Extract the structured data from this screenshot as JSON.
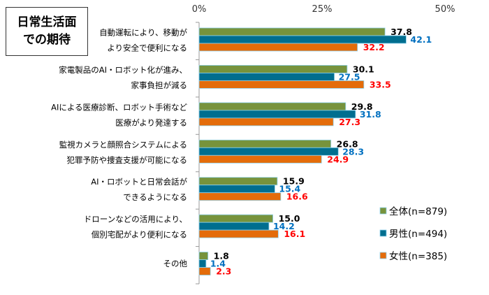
{
  "chart_data": {
    "type": "bar",
    "orientation": "horizontal",
    "title_lines": [
      "日常生活面",
      "での期待"
    ],
    "categories": [
      [
        "自動運転により、移動が",
        "より安全で便利になる"
      ],
      [
        "家電製品のAI・ロボット化が進み、",
        "家事負担が減る"
      ],
      [
        "AIによる医療診断、ロボット手術など",
        "医療がより発達する"
      ],
      [
        "監視カメラと顔照合システムによる",
        "犯罪予防や捜査支援が可能になる"
      ],
      [
        "AI・ロボットと日常会話が",
        "できるようになる"
      ],
      [
        "ドローンなどの活用により、",
        "個別宅配がより便利になる"
      ],
      [
        "その他"
      ]
    ],
    "series": [
      {
        "name": "全体(n=879)",
        "color": "#77933C",
        "label_color": "#000000",
        "values": [
          37.8,
          30.1,
          29.8,
          26.8,
          15.9,
          15.0,
          1.8
        ]
      },
      {
        "name": "男性(n=494)",
        "color": "#006E8F",
        "label_color": "#0070C0",
        "values": [
          42.1,
          27.5,
          31.8,
          28.3,
          15.4,
          14.2,
          1.4
        ]
      },
      {
        "name": "女性(n=385)",
        "color": "#E46C0A",
        "label_color": "#FF0000",
        "values": [
          32.2,
          33.5,
          27.3,
          24.9,
          16.6,
          16.1,
          2.3
        ]
      }
    ],
    "xlim": [
      0,
      50
    ],
    "xticks": [
      "0%",
      "25%",
      "50%"
    ],
    "xtick_values": [
      0,
      25,
      50
    ],
    "axis_position": "top",
    "grid": false,
    "legend_placement": "bottom-right"
  }
}
